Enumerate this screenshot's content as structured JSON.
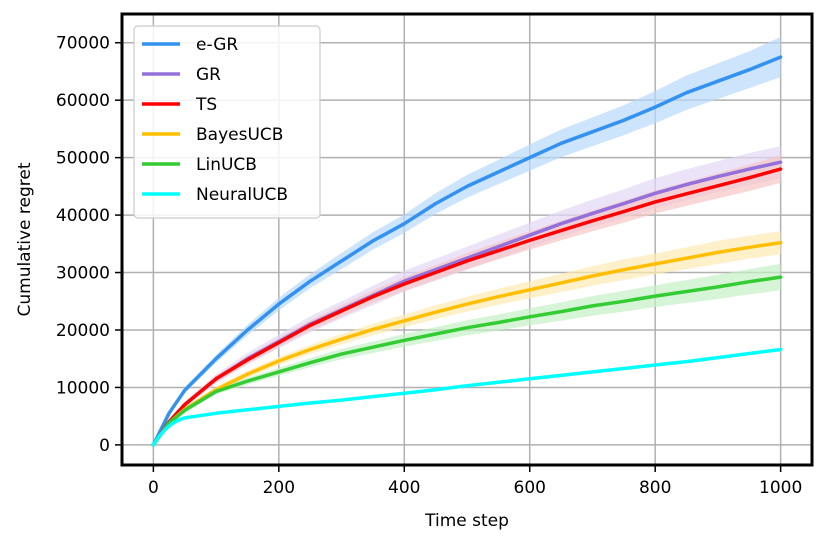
{
  "chart_data": {
    "type": "line",
    "title": "",
    "xlabel": "Time step",
    "ylabel": "Cumulative regret",
    "xlim": [
      -50,
      1050
    ],
    "ylim": [
      -3500,
      75000
    ],
    "xticks": [
      0,
      200,
      400,
      600,
      800,
      1000
    ],
    "yticks": [
      0,
      10000,
      20000,
      30000,
      40000,
      50000,
      60000,
      70000
    ],
    "grid": true,
    "legend_position": "top-left",
    "series": [
      {
        "name": "e-GR",
        "color": "#3391ef",
        "band_color": "#b7d9fb",
        "x": [
          0,
          25,
          50,
          100,
          150,
          200,
          250,
          300,
          350,
          400,
          450,
          500,
          550,
          600,
          650,
          700,
          750,
          800,
          850,
          900,
          950,
          1000
        ],
        "y": [
          0,
          5500,
          9500,
          15000,
          20000,
          24500,
          28500,
          32000,
          35500,
          38500,
          42000,
          45000,
          47500,
          50000,
          52500,
          54500,
          56500,
          58800,
          61300,
          63300,
          65300,
          67500
        ],
        "lower": [
          0,
          5200,
          9000,
          14300,
          19100,
          23400,
          27300,
          30600,
          34000,
          36900,
          40200,
          43000,
          45400,
          47700,
          50100,
          52000,
          53900,
          56000,
          58300,
          60200,
          62100,
          64000
        ],
        "upper": [
          0,
          5800,
          10000,
          15700,
          20900,
          25600,
          29700,
          33400,
          37000,
          40100,
          43800,
          47000,
          49600,
          52300,
          54900,
          57000,
          59100,
          61600,
          64300,
          66400,
          68500,
          71000
        ]
      },
      {
        "name": "GR",
        "color": "#9370db",
        "band_color": "#e3d8f6",
        "x": [
          0,
          25,
          50,
          100,
          150,
          200,
          250,
          300,
          350,
          400,
          450,
          500,
          550,
          600,
          650,
          700,
          750,
          800,
          850,
          900,
          950,
          1000
        ],
        "y": [
          0,
          4000,
          7000,
          11500,
          15000,
          18000,
          21000,
          23500,
          26000,
          28500,
          30500,
          32500,
          34500,
          36500,
          38500,
          40300,
          42000,
          43800,
          45300,
          46700,
          48000,
          49200
        ],
        "lower": [
          0,
          3800,
          6500,
          10700,
          14000,
          16800,
          19600,
          22000,
          24300,
          26700,
          28600,
          30500,
          32400,
          34300,
          36200,
          37900,
          39500,
          41200,
          42600,
          44000,
          45200,
          46400
        ],
        "upper": [
          0,
          4200,
          7500,
          12300,
          16000,
          19200,
          22400,
          25000,
          27700,
          30300,
          32400,
          34500,
          36600,
          38700,
          40800,
          42700,
          44500,
          46400,
          48000,
          49400,
          50800,
          52000
        ]
      },
      {
        "name": "TS",
        "color": "#ff0000",
        "band_color": "#f7c6c6",
        "x": [
          0,
          25,
          50,
          100,
          150,
          200,
          250,
          300,
          350,
          400,
          450,
          500,
          550,
          600,
          650,
          700,
          750,
          800,
          850,
          900,
          950,
          1000
        ],
        "y": [
          0,
          4000,
          7000,
          11500,
          14800,
          17800,
          20800,
          23300,
          25800,
          28000,
          30000,
          32000,
          33800,
          35600,
          37300,
          39000,
          40600,
          42300,
          43700,
          45100,
          46500,
          48000
        ],
        "lower": [
          0,
          3800,
          6600,
          10900,
          14100,
          17000,
          19900,
          22300,
          24700,
          26800,
          28700,
          30600,
          32300,
          34000,
          35600,
          37200,
          38700,
          40300,
          41600,
          42900,
          44200,
          45600
        ],
        "upper": [
          0,
          4200,
          7400,
          12100,
          15500,
          18600,
          21700,
          24300,
          26900,
          29200,
          31300,
          33400,
          35300,
          37200,
          39000,
          40800,
          42500,
          44300,
          45800,
          47300,
          48800,
          50400
        ]
      },
      {
        "name": "BayesUCB",
        "color": "#ffbf00",
        "band_color": "#fdeab0",
        "x": [
          0,
          25,
          50,
          100,
          150,
          200,
          250,
          300,
          350,
          400,
          450,
          500,
          550,
          600,
          650,
          700,
          750,
          800,
          850,
          900,
          950,
          1000
        ],
        "y": [
          0,
          3800,
          6200,
          9600,
          12300,
          14600,
          16600,
          18400,
          20100,
          21600,
          23100,
          24500,
          25800,
          27000,
          28200,
          29400,
          30500,
          31500,
          32500,
          33500,
          34400,
          35200
        ],
        "lower": [
          0,
          3600,
          5900,
          9100,
          11700,
          13900,
          15800,
          17500,
          19100,
          20500,
          21900,
          23200,
          24400,
          25500,
          26600,
          27700,
          28700,
          29700,
          30600,
          31500,
          32400,
          33200
        ],
        "upper": [
          0,
          4000,
          6500,
          10100,
          12900,
          15300,
          17400,
          19300,
          21100,
          22700,
          24300,
          25800,
          27200,
          28500,
          29800,
          31100,
          32300,
          33300,
          34400,
          35500,
          36400,
          37200
        ]
      },
      {
        "name": "LinUCB",
        "color": "#33cc33",
        "band_color": "#c4efc4",
        "x": [
          0,
          25,
          50,
          100,
          150,
          200,
          250,
          300,
          350,
          400,
          450,
          500,
          550,
          600,
          650,
          700,
          750,
          800,
          850,
          900,
          950,
          1000
        ],
        "y": [
          0,
          3800,
          6000,
          9300,
          11100,
          12700,
          14300,
          15800,
          17000,
          18200,
          19300,
          20400,
          21300,
          22300,
          23200,
          24200,
          25000,
          25900,
          26700,
          27500,
          28400,
          29200
        ],
        "lower": [
          0,
          3600,
          5700,
          8800,
          10500,
          12000,
          13500,
          14900,
          16000,
          17100,
          18100,
          19100,
          19900,
          20800,
          21600,
          22500,
          23200,
          24000,
          24700,
          25400,
          26200,
          26900
        ],
        "upper": [
          0,
          4000,
          6300,
          9800,
          11700,
          13400,
          15100,
          16700,
          18000,
          19300,
          20500,
          21700,
          22700,
          23800,
          24800,
          25900,
          26800,
          27800,
          28700,
          29600,
          30600,
          31500
        ]
      },
      {
        "name": "NeuralUCB",
        "color": "#00ffff",
        "band_color": "#bff7f7",
        "x": [
          0,
          10,
          20,
          30,
          40,
          50,
          100,
          150,
          200,
          250,
          300,
          350,
          400,
          450,
          500,
          550,
          600,
          650,
          700,
          750,
          800,
          850,
          900,
          950,
          1000
        ],
        "y": [
          0,
          1600,
          2800,
          3700,
          4300,
          4700,
          5500,
          6100,
          6700,
          7300,
          7800,
          8400,
          9000,
          9600,
          10300,
          10900,
          11500,
          12100,
          12700,
          13300,
          13900,
          14500,
          15200,
          15900,
          16600
        ],
        "lower": [
          0,
          1500,
          2650,
          3550,
          4150,
          4550,
          5350,
          5950,
          6550,
          7150,
          7650,
          8250,
          8850,
          9450,
          10150,
          10750,
          11350,
          11950,
          12550,
          13150,
          13750,
          14350,
          15050,
          15750,
          16450
        ],
        "upper": [
          0,
          1700,
          2950,
          3850,
          4450,
          4850,
          5650,
          6250,
          6850,
          7450,
          7950,
          8550,
          9150,
          9750,
          10450,
          11050,
          11650,
          12250,
          12850,
          13450,
          14050,
          14650,
          15350,
          16050,
          16750
        ]
      }
    ]
  }
}
